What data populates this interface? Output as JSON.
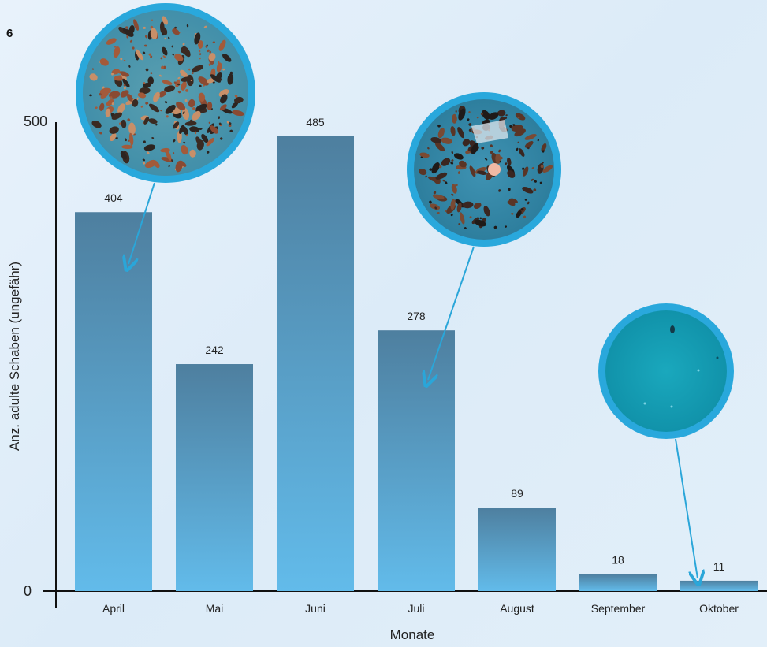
{
  "figure_number": "6",
  "chart_data": {
    "type": "bar",
    "categories": [
      "April",
      "Mai",
      "Juni",
      "Juli",
      "August",
      "September",
      "Oktober"
    ],
    "values": [
      404,
      242,
      485,
      278,
      89,
      18,
      11
    ],
    "data_labels": [
      "404",
      "242",
      "485",
      "278",
      "89",
      "18",
      "11"
    ],
    "xlabel": "Monate",
    "ylabel": "Anz. adulte Schaben (ungefähr)",
    "ylim": [
      0,
      500
    ],
    "yticks": [
      "0",
      "500"
    ],
    "grid": false,
    "bar_color_top": "#4e7f9f",
    "bar_color_bottom": "#62bbea",
    "arrow_color": "#2aa6d9"
  },
  "photos": [
    {
      "name": "photo-april",
      "ring_color": "#29a8dc",
      "content": "many cockroaches on blue surface",
      "points_to": "April"
    },
    {
      "name": "photo-juli",
      "ring_color": "#29a8dc",
      "content": "cockroaches on blue surface",
      "points_to": "Juli"
    },
    {
      "name": "photo-oktober",
      "ring_color": "#29a8dc",
      "content": "nearly empty blue surface",
      "points_to": "Oktober"
    }
  ]
}
